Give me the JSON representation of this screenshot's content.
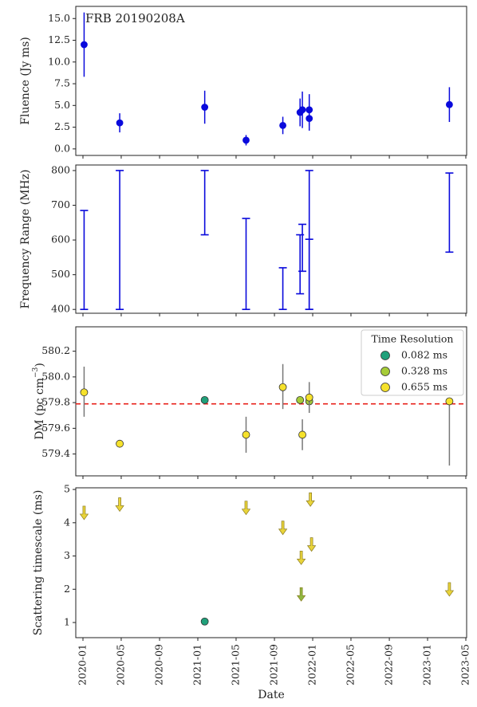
{
  "chart_data": [
    {
      "type": "scatter",
      "ylabel": "Fluence (Jy ms)",
      "annotation": "FRB 20190208A",
      "xlim": [
        2019.9375,
        2023.34
      ],
      "ylim": [
        -0.75,
        16.4
      ],
      "yticks": [
        {
          "value": 0,
          "label": "0.0"
        },
        {
          "value": 2.5,
          "label": "2.5"
        },
        {
          "value": 5,
          "label": "5.0"
        },
        {
          "value": 7.5,
          "label": "7.5"
        },
        {
          "value": 10,
          "label": "10.0"
        },
        {
          "value": 12.5,
          "label": "12.5"
        },
        {
          "value": 15,
          "label": "15.0"
        }
      ],
      "series": [
        {
          "color": "#0a0adc",
          "ecolor": "#0a0adc",
          "marker": "circle",
          "x": [
            2020.01,
            2020.32,
            2021.06,
            2021.42,
            2021.74,
            2021.89,
            2021.91,
            2021.97,
            2021.97,
            2023.19
          ],
          "values": [
            12.0,
            3.0,
            4.8,
            1.0,
            2.7,
            4.2,
            4.5,
            4.5,
            3.5,
            5.1
          ],
          "err": [
            3.7,
            1.1,
            1.9,
            0.6,
            1.0,
            1.6,
            2.1,
            1.8,
            1.4,
            2.0
          ]
        }
      ]
    },
    {
      "type": "range",
      "ylabel": "Frequency Range (MHz)",
      "color": "#0a0adc",
      "xlim": [
        2019.9375,
        2023.34
      ],
      "ylim": [
        389,
        816
      ],
      "yticks": [
        400,
        500,
        600,
        700,
        800
      ],
      "x": [
        2020.01,
        2020.32,
        2021.06,
        2021.42,
        2021.74,
        2021.89,
        2021.91,
        2021.97,
        2021.97,
        2023.19
      ],
      "low": [
        400,
        400,
        615,
        400,
        400,
        445,
        510,
        400,
        400,
        565
      ],
      "high": [
        685,
        800,
        800,
        662,
        520,
        615,
        645,
        800,
        602,
        793
      ]
    },
    {
      "type": "scatter",
      "ylabel_parts": [
        "DM (pc cm",
        "−3",
        ")"
      ],
      "xlim": [
        2019.9375,
        2023.34
      ],
      "ylim": [
        579.23,
        580.39
      ],
      "yticks": [
        579.4,
        579.6,
        579.8,
        {
          "value": 580.0,
          "label": "580.0"
        },
        580.2
      ],
      "hline": {
        "value": 579.79,
        "color": "#e8201a"
      },
      "legend": {
        "title": "Time Resolution",
        "loc": "upper right"
      },
      "series": [
        {
          "name": "0.082 ms",
          "color": "#20a07a",
          "ecolor": "#777777",
          "marker": "circle",
          "x": [
            2021.06
          ],
          "values": [
            579.82
          ],
          "err_low": [
            0
          ],
          "err_high": [
            0
          ]
        },
        {
          "name": "0.328 ms",
          "color": "#a6cc38",
          "ecolor": "#777777",
          "marker": "circle",
          "x": [
            2021.89,
            2021.97
          ],
          "values": [
            579.82,
            579.81
          ],
          "err_low": [
            0.02,
            0.02
          ],
          "err_high": [
            0.02,
            0.02
          ]
        },
        {
          "name": "0.655 ms",
          "color": "#f6e22c",
          "ecolor": "#777777",
          "marker": "circle",
          "x": [
            2020.01,
            2020.32,
            2021.42,
            2021.74,
            2021.91,
            2021.97,
            2023.19
          ],
          "values": [
            579.88,
            579.48,
            579.55,
            579.92,
            579.55,
            579.84,
            579.81
          ],
          "err_low": [
            0.19,
            0.01,
            0.14,
            0.17,
            0.12,
            0.12,
            0.5
          ],
          "err_high": [
            0.2,
            0.01,
            0.14,
            0.18,
            0.12,
            0.12,
            0.0
          ]
        }
      ]
    },
    {
      "type": "scatter",
      "ylabel": "Scattering timescale (ms)",
      "xlabel": "Date",
      "xlim": [
        2019.9375,
        2023.34
      ],
      "ylim": [
        0.545,
        5.05
      ],
      "yticks": [
        1,
        2,
        3,
        4,
        5
      ],
      "xticks": [
        {
          "value": 2020.0,
          "label": "2020-01"
        },
        {
          "value": 2020.333,
          "label": "2020-05"
        },
        {
          "value": 2020.667,
          "label": "2020-09"
        },
        {
          "value": 2021.0,
          "label": "2021-01"
        },
        {
          "value": 2021.333,
          "label": "2021-05"
        },
        {
          "value": 2021.667,
          "label": "2021-09"
        },
        {
          "value": 2022.0,
          "label": "2022-01"
        },
        {
          "value": 2022.333,
          "label": "2022-05"
        },
        {
          "value": 2022.667,
          "label": "2022-09"
        },
        {
          "value": 2023.0,
          "label": "2023-01"
        },
        {
          "value": 2023.333,
          "label": "2023-05"
        }
      ],
      "series": [
        {
          "color": "#20a07a",
          "marker": "circle",
          "x": [
            2021.06
          ],
          "values": [
            1.03
          ]
        },
        {
          "color": "#e9d43a",
          "marker": "arrow",
          "x": [
            2020.01,
            2020.32,
            2021.42,
            2021.74,
            2021.9,
            2021.98,
            2021.99,
            2023.19
          ],
          "values": [
            4.5,
            4.75,
            4.65,
            4.05,
            3.15,
            4.9,
            3.55,
            2.2
          ]
        },
        {
          "color": "#8fb840",
          "marker": "arrow",
          "x": [
            2021.9
          ],
          "values": [
            2.05
          ]
        }
      ]
    }
  ]
}
